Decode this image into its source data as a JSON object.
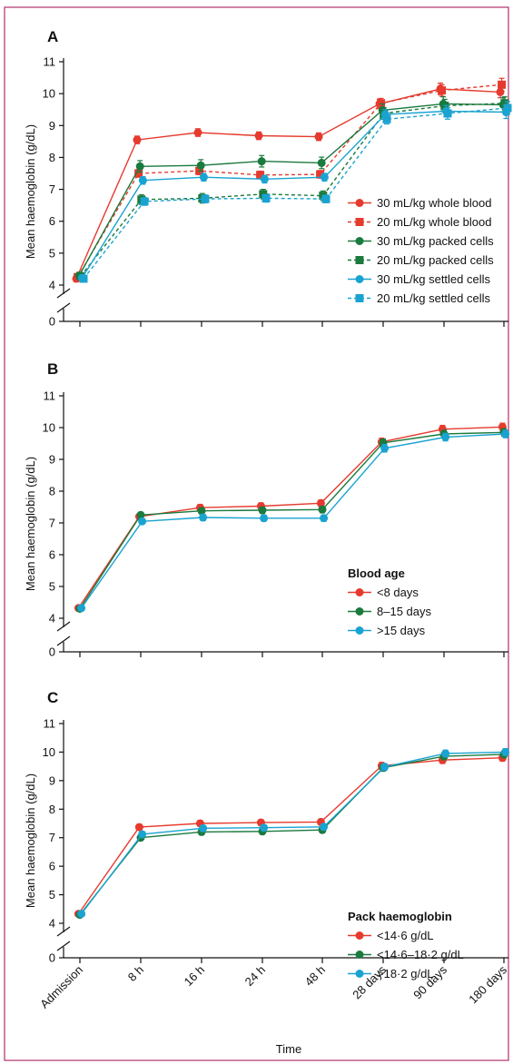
{
  "colors": {
    "red": "#e63a2e",
    "green": "#1b7a3e",
    "blue": "#1aa3d1",
    "frame": "#b0306a"
  },
  "categories": [
    "Admission",
    "8 h",
    "16 h",
    "24 h",
    "48 h",
    "28 days",
    "90 days",
    "180 days"
  ],
  "xlabel": "Time",
  "chart_data": [
    {
      "type": "line",
      "panel": "A",
      "ylabel": "Mean haemoglobin (g/dL)",
      "yticks": [
        0,
        4,
        5,
        6,
        7,
        8,
        9,
        10,
        11
      ],
      "ylim": [
        4,
        11
      ],
      "axis_break": true,
      "legend_title": "",
      "legend_position": "middle-right",
      "categories": [
        "Admission",
        "8 h",
        "16 h",
        "24 h",
        "48 h",
        "28 days",
        "90 days",
        "180 days"
      ],
      "series": [
        {
          "name": "30 mL/kg whole blood",
          "color": "red",
          "marker": "circle",
          "dashed": false,
          "values": [
            4.2,
            8.55,
            8.78,
            8.68,
            8.65,
            9.68,
            10.15,
            10.05
          ],
          "err": [
            0.1,
            0.12,
            0.12,
            0.12,
            0.12,
            0.15,
            0.18,
            0.18
          ]
        },
        {
          "name": "20 mL/kg whole blood",
          "color": "red",
          "marker": "square",
          "dashed": true,
          "values": [
            4.25,
            7.5,
            7.58,
            7.45,
            7.47,
            9.7,
            10.1,
            10.28
          ],
          "err": [
            0.1,
            0.12,
            0.12,
            0.12,
            0.12,
            0.15,
            0.18,
            0.2
          ]
        },
        {
          "name": "30 mL/kg packed cells",
          "color": "green",
          "marker": "circle",
          "dashed": false,
          "values": [
            4.3,
            7.72,
            7.75,
            7.88,
            7.83,
            9.48,
            9.68,
            9.65
          ],
          "err": [
            0.1,
            0.18,
            0.18,
            0.18,
            0.18,
            0.2,
            0.22,
            0.22
          ]
        },
        {
          "name": "20 mL/kg packed cells",
          "color": "green",
          "marker": "square",
          "dashed": true,
          "values": [
            4.28,
            6.68,
            6.72,
            6.85,
            6.8,
            9.38,
            9.62,
            9.7
          ],
          "err": [
            0.1,
            0.15,
            0.15,
            0.15,
            0.15,
            0.18,
            0.2,
            0.2
          ]
        },
        {
          "name": "30 mL/kg settled cells",
          "color": "blue",
          "marker": "circle",
          "dashed": false,
          "values": [
            4.22,
            7.28,
            7.38,
            7.32,
            7.38,
            9.35,
            9.45,
            9.42
          ],
          "err": [
            0.1,
            0.12,
            0.12,
            0.12,
            0.12,
            0.15,
            0.18,
            0.2
          ]
        },
        {
          "name": "20 mL/kg settled cells",
          "color": "blue",
          "marker": "square",
          "dashed": true,
          "values": [
            4.2,
            6.62,
            6.7,
            6.72,
            6.7,
            9.2,
            9.38,
            9.55
          ],
          "err": [
            0.1,
            0.12,
            0.12,
            0.12,
            0.12,
            0.15,
            0.18,
            0.2
          ]
        }
      ]
    },
    {
      "type": "line",
      "panel": "B",
      "ylabel": "Mean haemoglobin (g/dL)",
      "yticks": [
        0,
        4,
        5,
        6,
        7,
        8,
        9,
        10,
        11
      ],
      "ylim": [
        4,
        11
      ],
      "axis_break": true,
      "legend_title": "Blood age",
      "legend_position": "bottom-right",
      "categories": [
        "Admission",
        "8 h",
        "16 h",
        "24 h",
        "48 h",
        "28 days",
        "90 days",
        "180 days"
      ],
      "series": [
        {
          "name": "<8 days",
          "color": "red",
          "marker": "circle",
          "dashed": false,
          "values": [
            4.32,
            7.2,
            7.48,
            7.53,
            7.62,
            9.55,
            9.95,
            10.02
          ],
          "err": [
            0.05,
            0.08,
            0.1,
            0.1,
            0.1,
            0.12,
            0.12,
            0.12
          ]
        },
        {
          "name": "8–15 days",
          "color": "green",
          "marker": "circle",
          "dashed": false,
          "values": [
            4.3,
            7.25,
            7.38,
            7.4,
            7.42,
            9.52,
            9.8,
            9.85
          ],
          "err": [
            0.05,
            0.08,
            0.1,
            0.1,
            0.1,
            0.12,
            0.12,
            0.12
          ]
        },
        {
          "name": ">15 days",
          "color": "blue",
          "marker": "circle",
          "dashed": false,
          "values": [
            4.32,
            7.05,
            7.17,
            7.15,
            7.15,
            9.35,
            9.7,
            9.8
          ],
          "err": [
            0.05,
            0.08,
            0.1,
            0.1,
            0.1,
            0.12,
            0.12,
            0.12
          ]
        }
      ]
    },
    {
      "type": "line",
      "panel": "C",
      "ylabel": "Mean haemoglobin (g/dL)",
      "yticks": [
        0,
        4,
        5,
        6,
        7,
        8,
        9,
        10,
        11
      ],
      "ylim": [
        4,
        11
      ],
      "axis_break": true,
      "legend_title": "Pack haemoglobin",
      "legend_position": "bottom-right",
      "categories": [
        "Admission",
        "8 h",
        "16 h",
        "24 h",
        "48 h",
        "28 days",
        "90 days",
        "180 days"
      ],
      "series": [
        {
          "name": "<14·6 g/dL",
          "color": "red",
          "marker": "circle",
          "dashed": false,
          "values": [
            4.33,
            7.37,
            7.5,
            7.53,
            7.55,
            9.52,
            9.72,
            9.8
          ],
          "err": [
            0.05,
            0.1,
            0.1,
            0.1,
            0.1,
            0.12,
            0.12,
            0.12
          ]
        },
        {
          "name": "<14·6–18·2 g/dL",
          "color": "green",
          "marker": "circle",
          "dashed": false,
          "values": [
            4.3,
            7.0,
            7.2,
            7.22,
            7.27,
            9.45,
            9.85,
            9.92
          ],
          "err": [
            0.05,
            0.08,
            0.1,
            0.1,
            0.1,
            0.12,
            0.12,
            0.12
          ]
        },
        {
          "name": ">18·2 g/dL",
          "color": "blue",
          "marker": "circle",
          "dashed": false,
          "values": [
            4.33,
            7.12,
            7.33,
            7.35,
            7.38,
            9.48,
            9.95,
            10.0
          ],
          "err": [
            0.05,
            0.08,
            0.1,
            0.1,
            0.1,
            0.12,
            0.12,
            0.12
          ]
        }
      ]
    }
  ]
}
